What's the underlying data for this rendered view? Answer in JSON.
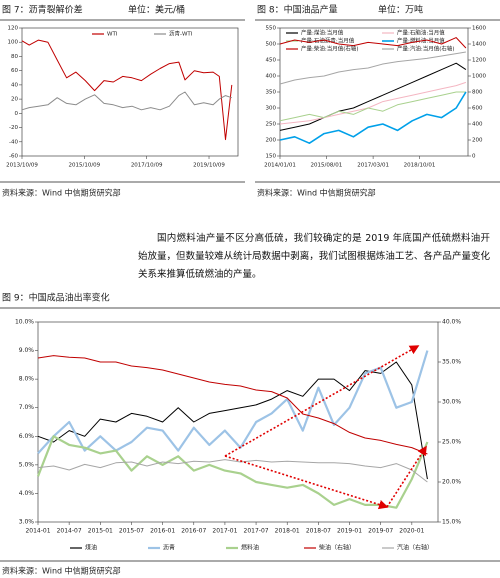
{
  "paragraph": "国内燃料油产量不区分高低硫，我们较确定的是 2019 年底国产低硫燃料油开始放量，但数量较难从统计局数据中剥离，我们试图根据炼油工艺、各产品产量变化关系来推算低硫燃油的产量。",
  "chart_data": [
    {
      "type": "line",
      "title": "图 7：沥青裂解价差",
      "subtitle": "单位：美元/桶",
      "source": "资料来源：Wind   中信期货研究部",
      "x": [
        2013.77,
        2014.0,
        2014.3,
        2014.6,
        2014.9,
        2015.2,
        2015.5,
        2015.8,
        2016.1,
        2016.4,
        2016.7,
        2017.0,
        2017.3,
        2017.6,
        2017.9,
        2018.2,
        2018.5,
        2018.8,
        2019.0,
        2019.3,
        2019.6,
        2019.9,
        2020.1,
        2020.3,
        2020.5
      ],
      "xlim": [
        2013.77,
        2020.7
      ],
      "xticks": [
        {
          "value": 2013.77,
          "label": "2013/10/09"
        },
        {
          "value": 2015.77,
          "label": "2015/10/09"
        },
        {
          "value": 2017.77,
          "label": "2017/10/09"
        },
        {
          "value": 2019.77,
          "label": "2019/10/09"
        }
      ],
      "ylim": [
        -60,
        120
      ],
      "yticks": [
        -60,
        -40,
        -20,
        0,
        20,
        40,
        60,
        80,
        100,
        120
      ],
      "series": [
        {
          "name": "WTI",
          "color": "#c00000",
          "values": [
            102,
            96,
            103,
            100,
            75,
            50,
            58,
            46,
            32,
            46,
            44,
            52,
            50,
            46,
            55,
            63,
            70,
            72,
            47,
            60,
            57,
            58,
            52,
            -37,
            40
          ]
        },
        {
          "name": "沥青-WTI",
          "color": "#8c8c8c",
          "values": [
            5,
            8,
            10,
            12,
            22,
            14,
            12,
            20,
            26,
            14,
            12,
            8,
            10,
            5,
            8,
            5,
            10,
            25,
            30,
            12,
            15,
            12,
            20,
            25,
            22
          ]
        }
      ]
    },
    {
      "type": "line",
      "title": "图 8：中国油品产量",
      "subtitle": "单位：万吨",
      "source": "资料来源：Wind   中信期货研究部",
      "x": [
        2014.0,
        2014.5,
        2015.0,
        2015.5,
        2016.0,
        2016.5,
        2017.0,
        2017.5,
        2018.0,
        2018.5,
        2019.0,
        2019.5,
        2020.0,
        2020.33
      ],
      "xlim": [
        2014.0,
        2020.4
      ],
      "xticks": [
        {
          "value": 2014.0,
          "label": "2014/01/01"
        },
        {
          "value": 2015.58,
          "label": "2015/08/01"
        },
        {
          "value": 2017.17,
          "label": "2017/03/01"
        },
        {
          "value": 2018.75,
          "label": "2018/10/01"
        }
      ],
      "ylim": [
        150,
        550
      ],
      "yticks": [
        150,
        200,
        250,
        300,
        350,
        400,
        450,
        500,
        550
      ],
      "y2lim": [
        0,
        1600
      ],
      "y2ticks": [
        0,
        200,
        400,
        600,
        800,
        1000,
        1200,
        1400,
        1600
      ],
      "series": [
        {
          "name": "产量:煤油:当月值",
          "color": "#000000",
          "values": [
            230,
            240,
            250,
            270,
            290,
            300,
            320,
            340,
            360,
            380,
            400,
            420,
            440,
            420
          ]
        },
        {
          "name": "产量:石脑油:当月值",
          "color": "#f4b6c2",
          "values": [
            250,
            255,
            260,
            270,
            280,
            290,
            300,
            320,
            330,
            340,
            350,
            360,
            370,
            380
          ]
        },
        {
          "name": "产量:石油沥青:当月值",
          "color": "#a9d18e",
          "values": [
            260,
            270,
            280,
            270,
            290,
            280,
            300,
            290,
            310,
            320,
            330,
            340,
            350,
            350
          ]
        },
        {
          "name": "产量:燃料油:当月值",
          "color": "#00a0e9",
          "values": [
            200,
            210,
            190,
            220,
            230,
            210,
            240,
            250,
            230,
            260,
            280,
            270,
            300,
            350
          ]
        },
        {
          "name": "产量:柴油:当月值(右轴)",
          "color": "#c00000",
          "axis": "y2",
          "values": [
            1400,
            1450,
            1420,
            1450,
            1400,
            1380,
            1420,
            1400,
            1380,
            1420,
            1450,
            1400,
            1480,
            1350
          ]
        },
        {
          "name": "产量:汽油:当月值(右轴)",
          "color": "#a6a6a6",
          "axis": "y2",
          "values": [
            900,
            950,
            980,
            1000,
            1050,
            1080,
            1100,
            1150,
            1180,
            1200,
            1220,
            1250,
            1280,
            1300
          ]
        }
      ]
    },
    {
      "type": "line",
      "title": "图 9：中国成品油出率变化",
      "source": "资料来源：Wind   中信期货研究部",
      "x": [
        2014.0,
        2014.25,
        2014.5,
        2014.75,
        2015.0,
        2015.25,
        2015.5,
        2015.75,
        2016.0,
        2016.25,
        2016.5,
        2016.75,
        2017.0,
        2017.25,
        2017.5,
        2017.75,
        2018.0,
        2018.25,
        2018.5,
        2018.75,
        2019.0,
        2019.25,
        2019.5,
        2019.75,
        2020.0,
        2020.25
      ],
      "xlim": [
        2014.0,
        2020.42
      ],
      "xticks": [
        {
          "value": 2014.0,
          "label": "2014-01"
        },
        {
          "value": 2014.5,
          "label": "2014-07"
        },
        {
          "value": 2015.0,
          "label": "2015-01"
        },
        {
          "value": 2015.5,
          "label": "2015-07"
        },
        {
          "value": 2016.0,
          "label": "2016-01"
        },
        {
          "value": 2016.5,
          "label": "2016-07"
        },
        {
          "value": 2017.0,
          "label": "2017-01"
        },
        {
          "value": 2017.5,
          "label": "2017-07"
        },
        {
          "value": 2018.0,
          "label": "2018-01"
        },
        {
          "value": 2018.5,
          "label": "2018-07"
        },
        {
          "value": 2019.0,
          "label": "2019-01"
        },
        {
          "value": 2019.5,
          "label": "2019-07"
        },
        {
          "value": 2020.0,
          "label": "2020-01"
        }
      ],
      "ylim": [
        3,
        10
      ],
      "yticks": [
        {
          "value": 3,
          "label": "3.0%"
        },
        {
          "value": 4,
          "label": "4.0%"
        },
        {
          "value": 5,
          "label": "5.0%"
        },
        {
          "value": 6,
          "label": "6.0%"
        },
        {
          "value": 7,
          "label": "7.0%"
        },
        {
          "value": 8,
          "label": "8.0%"
        },
        {
          "value": 9,
          "label": "9.0%"
        },
        {
          "value": 10,
          "label": "10.0%"
        }
      ],
      "y2lim": [
        15,
        40
      ],
      "y2ticks": [
        {
          "value": 15,
          "label": "15.0%"
        },
        {
          "value": 20,
          "label": "20.0%"
        },
        {
          "value": 25,
          "label": "25.0%"
        },
        {
          "value": 30,
          "label": "30.0%"
        },
        {
          "value": 35,
          "label": "35.0%"
        },
        {
          "value": 40,
          "label": "40.0%"
        }
      ],
      "series": [
        {
          "name": "煤油",
          "color": "#000000",
          "values": [
            6.0,
            5.8,
            6.2,
            6.0,
            6.6,
            6.5,
            6.8,
            6.7,
            6.5,
            7.0,
            6.5,
            6.8,
            6.9,
            7.0,
            7.1,
            7.3,
            7.6,
            7.4,
            8.0,
            8.0,
            7.6,
            8.3,
            8.2,
            8.6,
            7.8,
            4.5
          ]
        },
        {
          "name": "沥青",
          "color": "#9dc3e6",
          "values": [
            5.4,
            6.0,
            6.5,
            5.5,
            6.0,
            5.5,
            5.8,
            6.3,
            6.2,
            5.5,
            6.3,
            5.7,
            6.2,
            5.6,
            6.5,
            6.8,
            7.3,
            6.2,
            7.7,
            6.4,
            7.0,
            8.2,
            8.4,
            7.0,
            7.2,
            9.0
          ]
        },
        {
          "name": "燃料油",
          "color": "#a9d18e",
          "values": [
            4.6,
            6.0,
            5.7,
            5.6,
            5.4,
            5.5,
            4.8,
            5.3,
            5.0,
            5.3,
            4.8,
            5.0,
            4.8,
            4.7,
            4.4,
            4.3,
            4.2,
            4.3,
            4.0,
            3.6,
            3.8,
            3.6,
            3.6,
            3.5,
            4.5,
            5.8
          ]
        },
        {
          "name": "柴油（右轴）",
          "color": "#c00000",
          "axis": "y2",
          "values": [
            35.5,
            35.8,
            35.6,
            35.5,
            35.0,
            35.0,
            34.5,
            34.3,
            34.0,
            33.5,
            33.0,
            32.5,
            32.2,
            32.0,
            31.5,
            31.3,
            30.5,
            28.5,
            28.0,
            27.3,
            26.2,
            25.5,
            25.2,
            24.7,
            24.3,
            23.5
          ]
        },
        {
          "name": "汽油（右轴）",
          "color": "#a6a6a6",
          "axis": "y2",
          "values": [
            21.8,
            22.0,
            21.5,
            22.2,
            21.8,
            22.4,
            22.5,
            22.0,
            22.5,
            22.3,
            22.6,
            22.5,
            22.8,
            22.5,
            22.7,
            22.5,
            22.6,
            22.5,
            22.4,
            22.4,
            22.3,
            22.0,
            21.8,
            22.3,
            21.5,
            20.0
          ]
        }
      ]
    }
  ]
}
